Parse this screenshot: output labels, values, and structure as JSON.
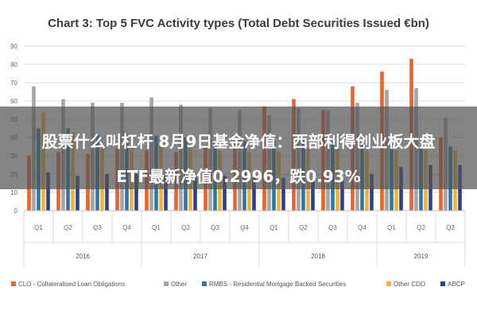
{
  "chart_data": {
    "type": "bar",
    "title": "Chart 3: Top 5 FVC Activity types (Total Debt Securities Issued €bn)",
    "xlabel": "",
    "ylabel": "",
    "ylim": [
      0,
      90
    ],
    "yticks": [
      0,
      10,
      20,
      30,
      40,
      50,
      60,
      70,
      80,
      90
    ],
    "grid": true,
    "legend_position": "bottom",
    "categories": [
      "Q1",
      "Q2",
      "Q3",
      "Q4",
      "Q1",
      "Q2",
      "Q3",
      "Q4",
      "Q1",
      "Q2",
      "Q3",
      "Q4",
      "Q1",
      "Q2",
      "Q3"
    ],
    "years": [
      {
        "label": "2016",
        "count": 4
      },
      {
        "label": "2017",
        "count": 4
      },
      {
        "label": "2018",
        "count": 4
      },
      {
        "label": "2019",
        "count": 3
      }
    ],
    "series": [
      {
        "name": "CLO - Collateralised Loan Obligations",
        "color": "#e8642c",
        "values": [
          30,
          32,
          31,
          34,
          33,
          32,
          35,
          37,
          57,
          61,
          55,
          68,
          76,
          83,
          40
        ]
      },
      {
        "name": "Other",
        "color": "#a5a5a5",
        "values": [
          68,
          61,
          59,
          59,
          62,
          58,
          56,
          55,
          52,
          56,
          55,
          59,
          66,
          67,
          51
        ]
      },
      {
        "name": "RMBS - Residential Mortgage Backed Securities",
        "color": "#2a78a8",
        "values": [
          45,
          45,
          42,
          42,
          41,
          40,
          38,
          38,
          38,
          40,
          38,
          36,
          36,
          34,
          35
        ]
      },
      {
        "name": "Other CDO",
        "color": "#f2b233",
        "values": [
          54,
          43,
          37,
          36,
          35,
          35,
          33,
          32,
          32,
          34,
          34,
          33,
          33,
          33,
          33
        ]
      },
      {
        "name": "ABCP",
        "color": "#2f3f8f",
        "values": [
          21,
          19,
          20,
          20,
          20,
          19,
          19,
          18,
          18,
          17,
          18,
          20,
          24,
          25,
          25
        ]
      }
    ]
  },
  "overlay": {
    "line1": "股票什么叫杠杆 8月9日基金净值：西部利得创业板大盘",
    "line2": "ETF最新净值0.2996，跌0.93%"
  }
}
